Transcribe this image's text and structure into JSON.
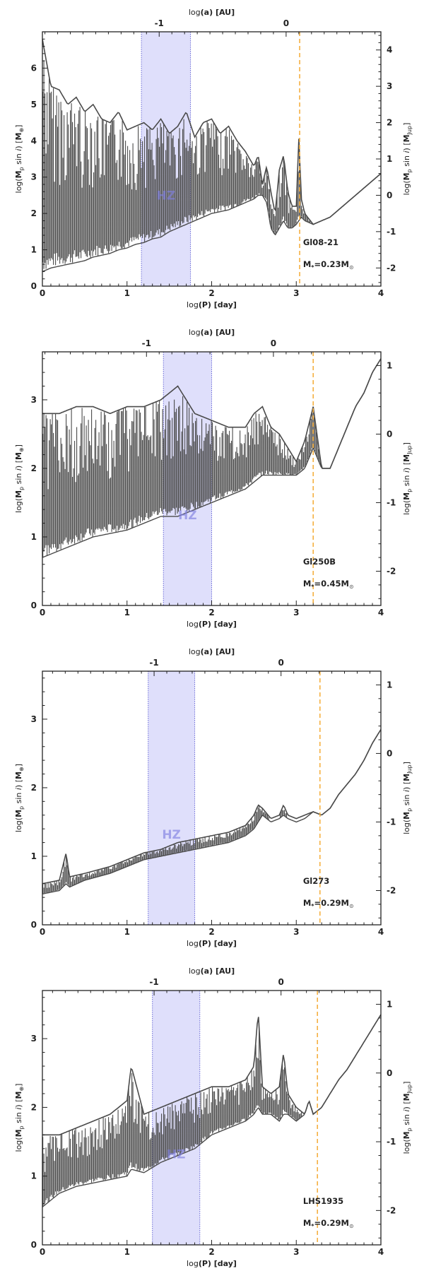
{
  "chart_data": [
    {
      "type": "line",
      "star": "Gl08-21",
      "mass_label": "M",
      "mass_sub": "*",
      "mass_value": "=0.23M",
      "sun_symbol": "⊙",
      "xlim": [
        0,
        4
      ],
      "ylim": [
        0,
        7
      ],
      "ylim_right": [
        -2.5,
        4.5
      ],
      "x_ticks": [
        "0",
        "1",
        "2",
        "3",
        "4"
      ],
      "y_ticks": [
        "0",
        "1",
        "2",
        "3",
        "4",
        "5",
        "6"
      ],
      "y2_ticks": [
        "-2",
        "-1",
        "0",
        "1",
        "2",
        "3",
        "4"
      ],
      "top_ticks": [
        "-1",
        "0"
      ],
      "top_tick_positions": [
        1.38,
        2.88
      ],
      "hz_band": [
        1.17,
        1.75
      ],
      "hz_label": "HZ",
      "dashed_line_x": 3.04,
      "xlabel": "log(P) [day]",
      "top_label": "log(a) [AU]",
      "ylabel": "log(Mp sin i) [M⊕]",
      "ylabel_right": "log(Mp sin i) [MJup]",
      "envelope": [
        [
          0,
          0.4,
          6.8
        ],
        [
          0.1,
          0.5,
          5.5
        ],
        [
          0.2,
          0.55,
          5.4
        ],
        [
          0.3,
          0.6,
          5.0
        ],
        [
          0.4,
          0.65,
          5.2
        ],
        [
          0.5,
          0.7,
          4.8
        ],
        [
          0.6,
          0.8,
          5.0
        ],
        [
          0.7,
          0.85,
          4.6
        ],
        [
          0.8,
          0.9,
          4.5
        ],
        [
          0.9,
          1.0,
          4.8
        ],
        [
          1.0,
          1.05,
          4.3
        ],
        [
          1.1,
          1.15,
          4.4
        ],
        [
          1.2,
          1.2,
          4.5
        ],
        [
          1.3,
          1.3,
          4.3
        ],
        [
          1.4,
          1.35,
          4.6
        ],
        [
          1.5,
          1.5,
          4.2
        ],
        [
          1.6,
          1.6,
          4.4
        ],
        [
          1.7,
          1.7,
          4.8
        ],
        [
          1.8,
          1.8,
          4.1
        ],
        [
          1.9,
          1.9,
          4.5
        ],
        [
          2.0,
          2.0,
          4.6
        ],
        [
          2.1,
          2.05,
          4.2
        ],
        [
          2.2,
          2.1,
          4.4
        ],
        [
          2.3,
          2.2,
          4.0
        ],
        [
          2.4,
          2.3,
          3.7
        ],
        [
          2.5,
          2.4,
          3.3
        ],
        [
          2.55,
          2.5,
          3.6
        ],
        [
          2.6,
          2.5,
          2.8
        ],
        [
          2.65,
          2.3,
          3.3
        ],
        [
          2.7,
          1.6,
          2.6
        ],
        [
          2.75,
          1.4,
          2.0
        ],
        [
          2.8,
          1.6,
          3.2
        ],
        [
          2.85,
          1.8,
          3.6
        ],
        [
          2.9,
          1.6,
          2.6
        ],
        [
          2.95,
          1.6,
          2.2
        ],
        [
          3.0,
          1.7,
          2.2
        ],
        [
          3.03,
          1.8,
          4.1
        ],
        [
          3.06,
          1.9,
          2.4
        ],
        [
          3.1,
          1.8,
          2.0
        ],
        [
          3.2,
          1.7,
          1.7
        ],
        [
          3.3,
          1.8,
          1.8
        ],
        [
          3.4,
          1.9,
          1.9
        ],
        [
          3.5,
          2.1,
          2.1
        ],
        [
          3.6,
          2.3,
          2.3
        ],
        [
          3.7,
          2.5,
          2.5
        ],
        [
          3.8,
          2.7,
          2.7
        ],
        [
          3.9,
          2.9,
          2.9
        ],
        [
          4.0,
          3.1,
          3.1
        ]
      ]
    },
    {
      "type": "line",
      "star": "Gl250B",
      "mass_label": "M",
      "mass_sub": "*",
      "mass_value": "=0.45M",
      "sun_symbol": "⊙",
      "xlim": [
        0,
        4
      ],
      "ylim": [
        0,
        3.7
      ],
      "ylim_right": [
        -2.5,
        1.2
      ],
      "x_ticks": [
        "0",
        "1",
        "2",
        "3",
        "4"
      ],
      "y_ticks": [
        "0",
        "1",
        "2",
        "3"
      ],
      "y2_ticks": [
        "-2",
        "-1",
        "0",
        "1"
      ],
      "top_ticks": [
        "-1",
        "0"
      ],
      "top_tick_positions": [
        1.23,
        2.73
      ],
      "hz_band": [
        1.43,
        2.0
      ],
      "hz_label": "HZ",
      "dashed_line_x": 3.2,
      "xlabel": "log(P) [day]",
      "top_label": "log(a) [AU]",
      "ylabel": "log(Mp sin i) [M⊕]",
      "ylabel_right": "log(Mp sin i) [MJup]",
      "envelope": [
        [
          0,
          0.7,
          2.8
        ],
        [
          0.2,
          0.8,
          2.8
        ],
        [
          0.4,
          0.9,
          2.9
        ],
        [
          0.6,
          1.0,
          2.9
        ],
        [
          0.8,
          1.05,
          2.8
        ],
        [
          1.0,
          1.1,
          2.9
        ],
        [
          1.2,
          1.2,
          2.9
        ],
        [
          1.4,
          1.3,
          3.0
        ],
        [
          1.6,
          1.3,
          3.2
        ],
        [
          1.8,
          1.4,
          2.8
        ],
        [
          2.0,
          1.5,
          2.7
        ],
        [
          2.2,
          1.6,
          2.6
        ],
        [
          2.4,
          1.7,
          2.6
        ],
        [
          2.5,
          1.8,
          2.8
        ],
        [
          2.6,
          1.9,
          2.9
        ],
        [
          2.7,
          1.9,
          2.6
        ],
        [
          2.8,
          1.9,
          2.5
        ],
        [
          2.9,
          1.9,
          2.3
        ],
        [
          3.0,
          1.9,
          2.1
        ],
        [
          3.1,
          2.0,
          2.4
        ],
        [
          3.2,
          2.3,
          2.9
        ],
        [
          3.3,
          2.0,
          2.0
        ],
        [
          3.4,
          2.0,
          2.0
        ],
        [
          3.5,
          2.3,
          2.3
        ],
        [
          3.6,
          2.6,
          2.6
        ],
        [
          3.7,
          2.9,
          2.9
        ],
        [
          3.8,
          3.1,
          3.1
        ],
        [
          3.9,
          3.4,
          3.4
        ],
        [
          4.0,
          3.6,
          3.6
        ]
      ]
    },
    {
      "type": "line",
      "star": "Gl273",
      "mass_label": "M",
      "mass_sub": "*",
      "mass_value": "=0.29M",
      "sun_symbol": "⊙",
      "xlim": [
        0,
        4
      ],
      "ylim": [
        0,
        3.7
      ],
      "ylim_right": [
        -2.5,
        1.2
      ],
      "x_ticks": [
        "0",
        "1",
        "2",
        "3",
        "4"
      ],
      "y_ticks": [
        "0",
        "1",
        "2",
        "3"
      ],
      "y2_ticks": [
        "-2",
        "-1",
        "0",
        "1"
      ],
      "top_ticks": [
        "-1",
        "0"
      ],
      "top_tick_positions": [
        1.32,
        2.82
      ],
      "hz_band": [
        1.25,
        1.8
      ],
      "hz_label": "HZ",
      "dashed_line_x": 3.28,
      "xlabel": "log(P) [day]",
      "top_label": "log(a) [AU]",
      "ylabel": "log(Mp sin i) [M⊕]",
      "ylabel_right": "log(Mp sin i) [MJup]",
      "envelope": [
        [
          0,
          0.45,
          0.6
        ],
        [
          0.2,
          0.5,
          0.65
        ],
        [
          0.28,
          0.6,
          1.05
        ],
        [
          0.32,
          0.55,
          0.7
        ],
        [
          0.5,
          0.65,
          0.75
        ],
        [
          0.8,
          0.75,
          0.85
        ],
        [
          1.0,
          0.85,
          0.95
        ],
        [
          1.2,
          0.95,
          1.05
        ],
        [
          1.4,
          1.0,
          1.1
        ],
        [
          1.6,
          1.05,
          1.2
        ],
        [
          1.8,
          1.1,
          1.25
        ],
        [
          2.0,
          1.15,
          1.3
        ],
        [
          2.2,
          1.2,
          1.35
        ],
        [
          2.4,
          1.3,
          1.45
        ],
        [
          2.5,
          1.4,
          1.6
        ],
        [
          2.55,
          1.5,
          1.75
        ],
        [
          2.6,
          1.6,
          1.7
        ],
        [
          2.7,
          1.5,
          1.55
        ],
        [
          2.8,
          1.55,
          1.6
        ],
        [
          2.85,
          1.6,
          1.75
        ],
        [
          2.9,
          1.55,
          1.6
        ],
        [
          3.0,
          1.5,
          1.55
        ],
        [
          3.1,
          1.55,
          1.6
        ],
        [
          3.2,
          1.65,
          1.65
        ],
        [
          3.3,
          1.6,
          1.6
        ],
        [
          3.4,
          1.7,
          1.7
        ],
        [
          3.5,
          1.9,
          1.9
        ],
        [
          3.6,
          2.05,
          2.05
        ],
        [
          3.7,
          2.2,
          2.2
        ],
        [
          3.8,
          2.4,
          2.4
        ],
        [
          3.9,
          2.65,
          2.65
        ],
        [
          4.0,
          2.85,
          2.85
        ]
      ]
    },
    {
      "type": "line",
      "star": "LHS1935",
      "mass_label": "M",
      "mass_sub": "*",
      "mass_value": "=0.29M",
      "sun_symbol": "⊙",
      "xlim": [
        0,
        4
      ],
      "ylim": [
        0,
        3.7
      ],
      "ylim_right": [
        -2.5,
        1.2
      ],
      "x_ticks": [
        "0",
        "1",
        "2",
        "3",
        "4"
      ],
      "y_ticks": [
        "0",
        "1",
        "2",
        "3"
      ],
      "y2_ticks": [
        "-2",
        "-1",
        "0",
        "1"
      ],
      "top_ticks": [
        "-1",
        "0"
      ],
      "top_tick_positions": [
        1.32,
        2.82
      ],
      "hz_band": [
        1.3,
        1.86
      ],
      "hz_label": "HZ",
      "dashed_line_x": 3.25,
      "xlabel": "log(P) [day]",
      "top_label": "log(a) [AU]",
      "ylabel": "log(Mp sin i) [M⊕]",
      "ylabel_right": "log(Mp sin i) [MJup]",
      "envelope": [
        [
          0,
          0.55,
          1.6
        ],
        [
          0.2,
          0.75,
          1.6
        ],
        [
          0.4,
          0.85,
          1.7
        ],
        [
          0.6,
          0.9,
          1.8
        ],
        [
          0.8,
          0.95,
          1.9
        ],
        [
          1.0,
          1.0,
          2.1
        ],
        [
          1.05,
          1.1,
          2.6
        ],
        [
          1.2,
          1.05,
          1.9
        ],
        [
          1.4,
          1.2,
          2.0
        ],
        [
          1.6,
          1.3,
          2.1
        ],
        [
          1.8,
          1.4,
          2.2
        ],
        [
          2.0,
          1.6,
          2.3
        ],
        [
          2.2,
          1.7,
          2.3
        ],
        [
          2.4,
          1.8,
          2.4
        ],
        [
          2.5,
          1.9,
          2.6
        ],
        [
          2.55,
          2.0,
          3.4
        ],
        [
          2.6,
          1.9,
          2.3
        ],
        [
          2.7,
          1.9,
          2.2
        ],
        [
          2.8,
          1.8,
          2.3
        ],
        [
          2.85,
          1.9,
          2.8
        ],
        [
          2.9,
          1.9,
          2.2
        ],
        [
          3.0,
          1.8,
          2.0
        ],
        [
          3.1,
          1.9,
          1.9
        ],
        [
          3.15,
          2.1,
          2.1
        ],
        [
          3.2,
          1.9,
          1.9
        ],
        [
          3.3,
          2.0,
          2.0
        ],
        [
          3.4,
          2.2,
          2.2
        ],
        [
          3.5,
          2.4,
          2.4
        ],
        [
          3.6,
          2.55,
          2.55
        ],
        [
          3.7,
          2.75,
          2.75
        ],
        [
          3.8,
          2.95,
          2.95
        ],
        [
          3.9,
          3.15,
          3.15
        ],
        [
          4.0,
          3.35,
          3.35
        ]
      ]
    }
  ]
}
